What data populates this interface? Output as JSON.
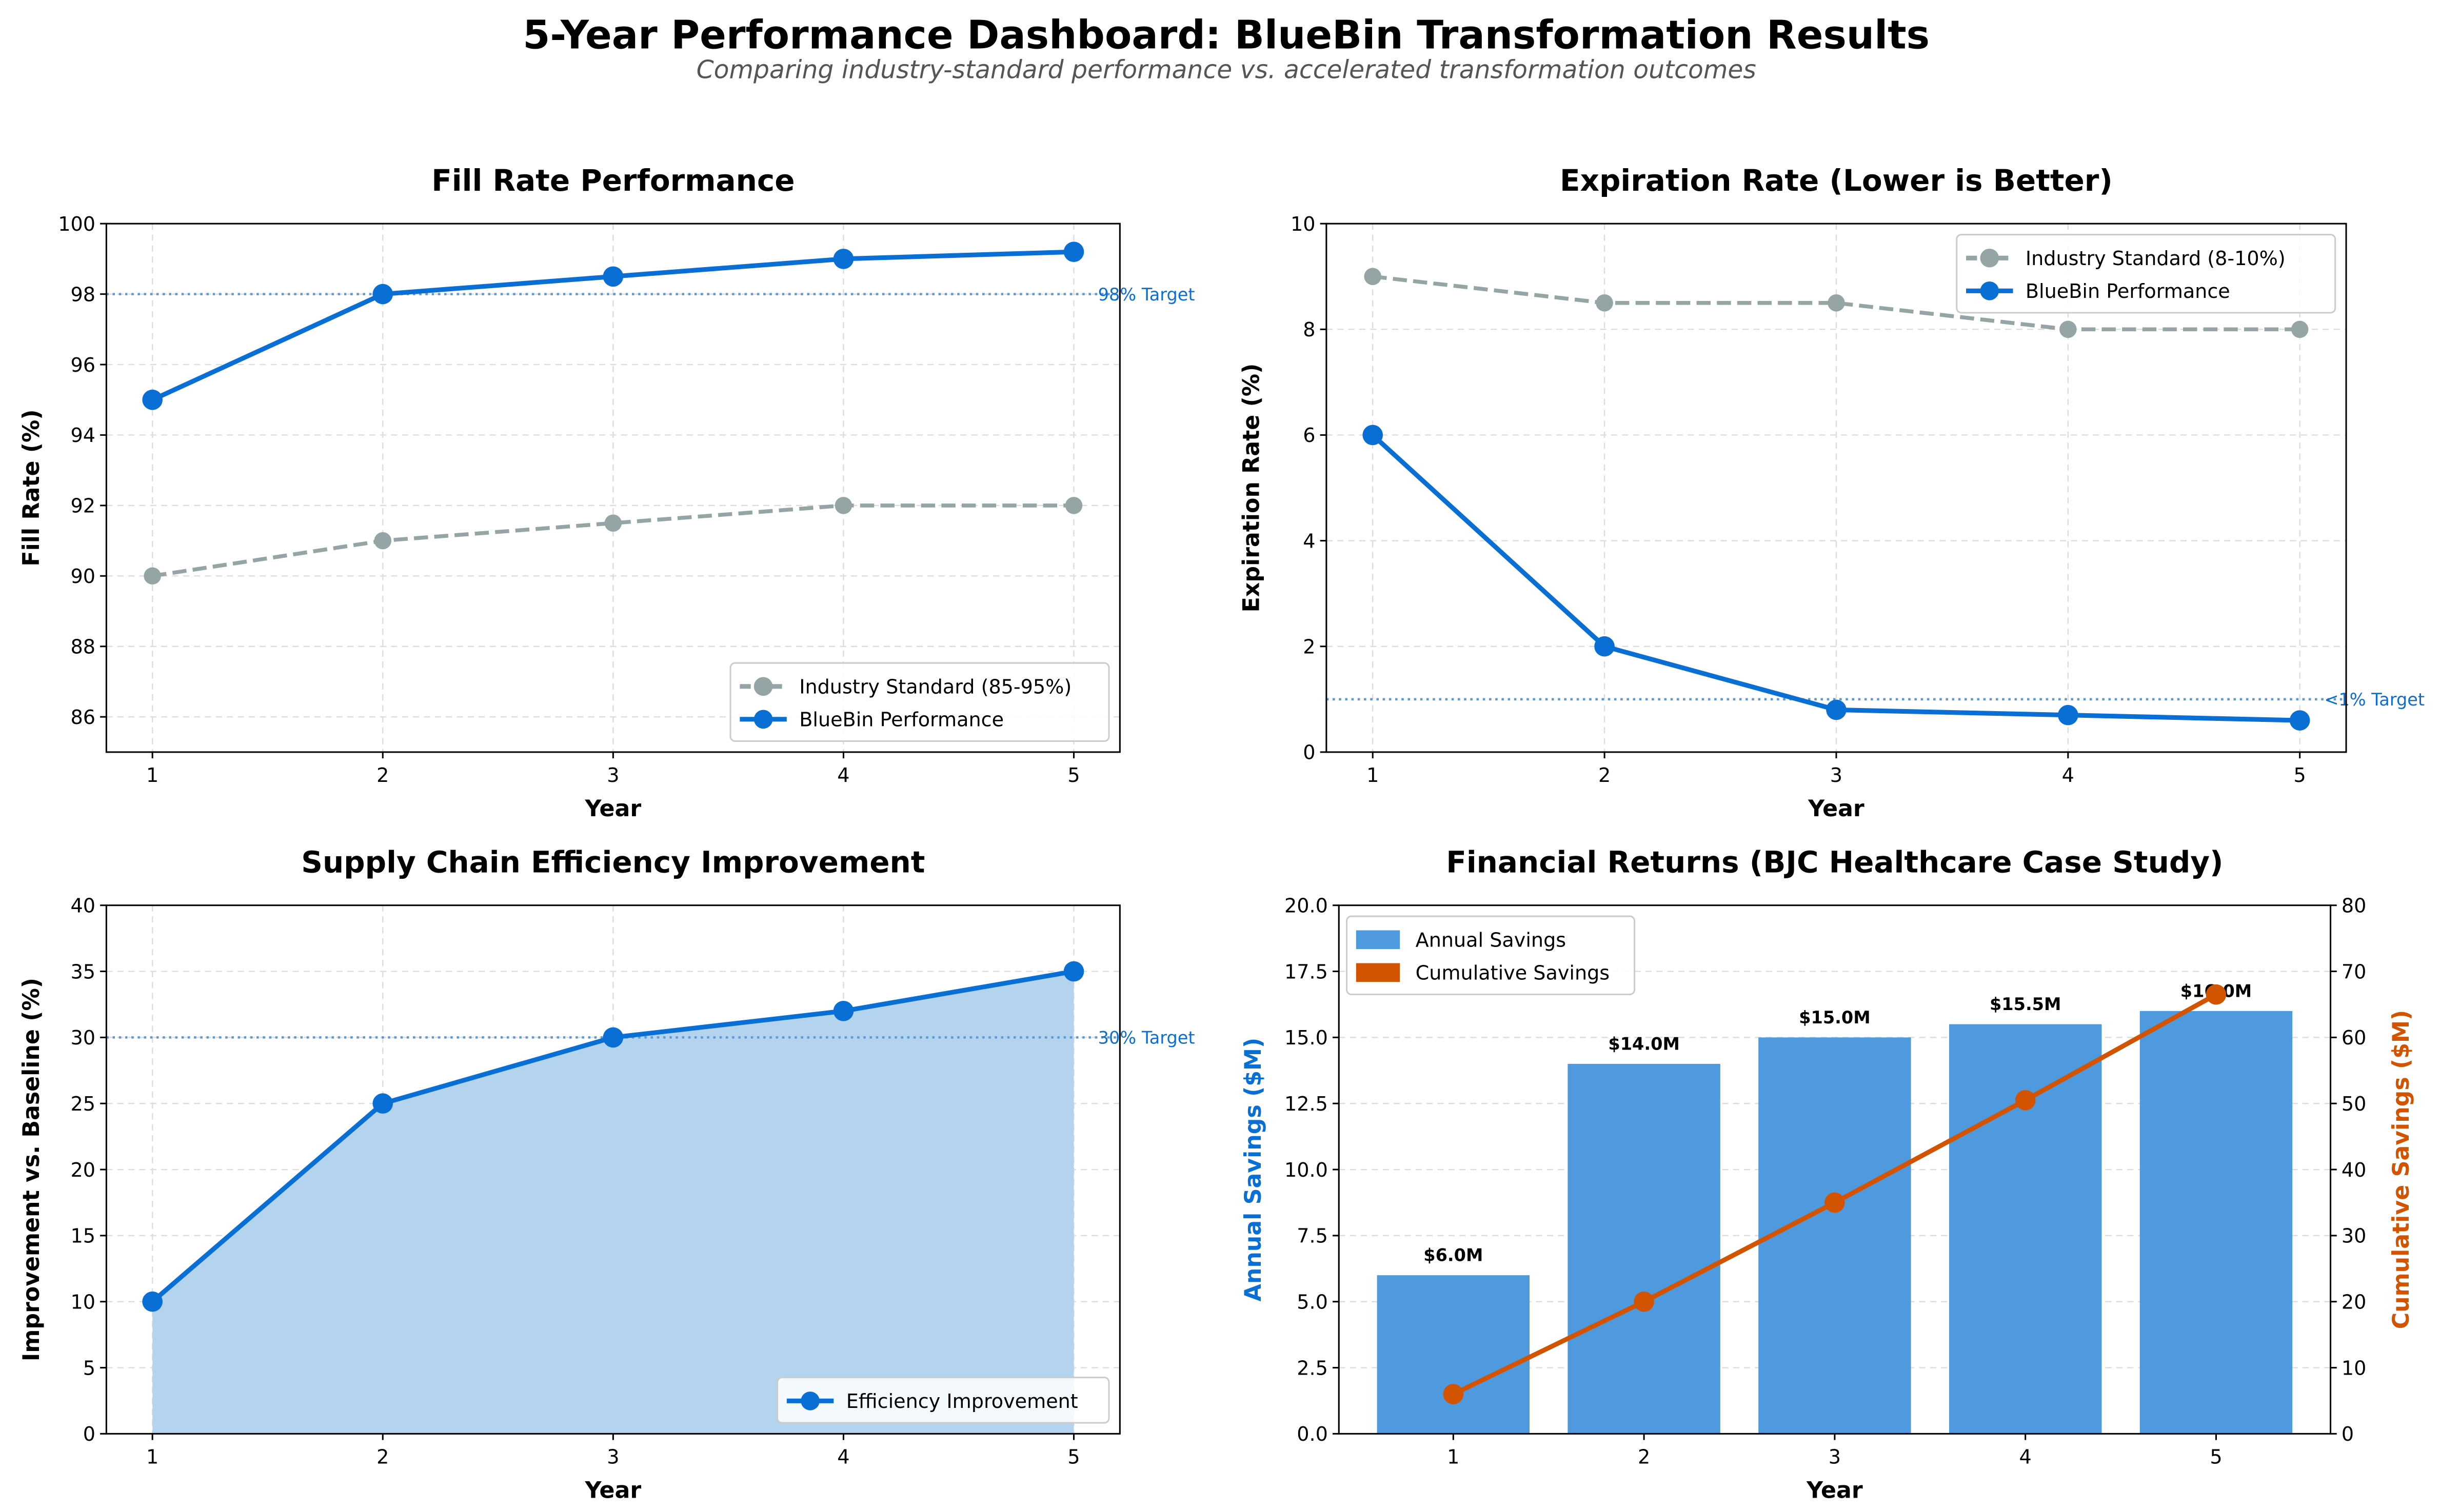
{
  "title": "5-Year Performance Dashboard: BlueBin Transformation Results",
  "subtitle": "Comparing industry-standard performance vs. accelerated transformation outcomes",
  "colors": {
    "bluebin": "#0a6fd4",
    "industry": "#95a5a6",
    "bar": "#4f9ade",
    "cumulative": "#d35400",
    "fill": "#b3d3ef",
    "target": "#5b9bd5"
  },
  "chart_data": [
    {
      "type": "line",
      "title": "Fill Rate Performance",
      "xlabel": "Year",
      "ylabel": "Fill Rate (%)",
      "x": [
        1,
        2,
        3,
        4,
        5
      ],
      "xlim": [
        0.8,
        5.2
      ],
      "ylim": [
        85,
        100
      ],
      "yticks": [
        86,
        88,
        90,
        92,
        94,
        96,
        98,
        100
      ],
      "grid": true,
      "legend": "lower-right",
      "series": [
        {
          "name": "Industry Standard (85-95%)",
          "values": [
            90,
            91,
            91.5,
            92,
            92
          ],
          "style": "dashed",
          "color": "#95a5a6"
        },
        {
          "name": "BlueBin Performance",
          "values": [
            95,
            98,
            98.5,
            99,
            99.2
          ],
          "style": "solid",
          "color": "#0a6fd4"
        }
      ],
      "target": {
        "value": 98,
        "label": "98% Target"
      }
    },
    {
      "type": "line",
      "title": "Expiration Rate (Lower is Better)",
      "xlabel": "Year",
      "ylabel": "Expiration Rate (%)",
      "x": [
        1,
        2,
        3,
        4,
        5
      ],
      "xlim": [
        0.8,
        5.2
      ],
      "ylim": [
        0,
        10
      ],
      "yticks": [
        0,
        2,
        4,
        6,
        8,
        10
      ],
      "grid": true,
      "legend": "upper-right",
      "series": [
        {
          "name": "Industry Standard (8-10%)",
          "values": [
            9,
            8.5,
            8.5,
            8,
            8
          ],
          "style": "dashed",
          "color": "#95a5a6"
        },
        {
          "name": "BlueBin Performance",
          "values": [
            6,
            2,
            0.8,
            0.7,
            0.6
          ],
          "style": "solid",
          "color": "#0a6fd4"
        }
      ],
      "target": {
        "value": 1,
        "label": "<1% Target"
      }
    },
    {
      "type": "area",
      "title": "Supply Chain Efficiency Improvement",
      "xlabel": "Year",
      "ylabel": "Improvement vs. Baseline (%)",
      "x": [
        1,
        2,
        3,
        4,
        5
      ],
      "xlim": [
        0.8,
        5.2
      ],
      "ylim": [
        0,
        40
      ],
      "yticks": [
        0,
        5,
        10,
        15,
        20,
        25,
        30,
        35,
        40
      ],
      "grid": true,
      "legend": "lower-right",
      "series": [
        {
          "name": "Efficiency Improvement",
          "values": [
            10,
            25,
            30,
            32,
            35
          ],
          "style": "solid",
          "color": "#0a6fd4"
        }
      ],
      "target": {
        "value": 30,
        "label": "30% Target"
      }
    },
    {
      "type": "bar",
      "title": "Financial Returns (BJC Healthcare Case Study)",
      "xlabel": "Year",
      "ylabel": "Annual Savings ($M)",
      "y2label": "Cumulative Savings ($M)",
      "x": [
        1,
        2,
        3,
        4,
        5
      ],
      "xlim": [
        0.4,
        5.6
      ],
      "ylim": [
        0,
        20
      ],
      "y2lim": [
        0,
        80
      ],
      "yticks": [
        "0.0",
        "2.5",
        "5.0",
        "7.5",
        "10.0",
        "12.5",
        "15.0",
        "17.5",
        "20.0"
      ],
      "y2ticks": [
        0,
        10,
        20,
        30,
        40,
        50,
        60,
        70,
        80
      ],
      "grid": true,
      "legend": "upper-left",
      "series": [
        {
          "name": "Annual Savings",
          "values": [
            6,
            14,
            15,
            15.5,
            16
          ],
          "color": "#4f9ade",
          "labels": [
            "$6.0M",
            "$14.0M",
            "$15.0M",
            "$15.5M",
            "$16.0M"
          ]
        },
        {
          "name": "Cumulative Savings",
          "values": [
            6,
            20,
            35,
            50.5,
            66.5
          ],
          "color": "#d35400",
          "axis": "right"
        }
      ]
    }
  ]
}
